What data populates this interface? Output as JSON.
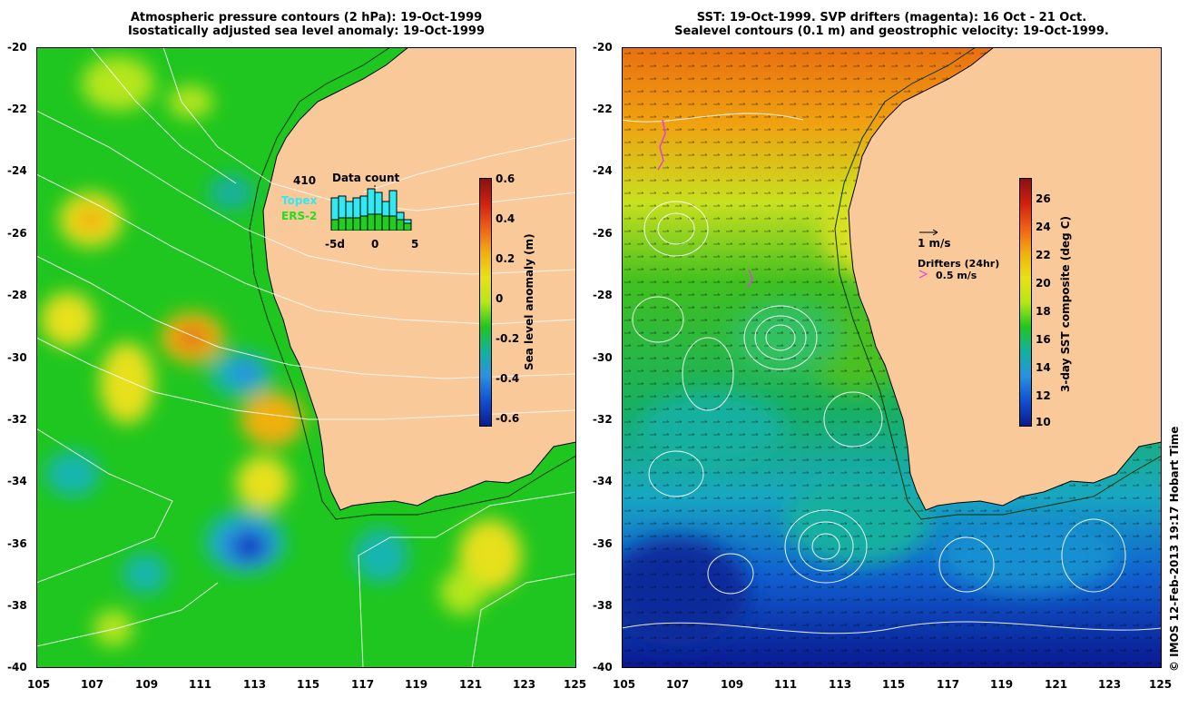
{
  "left_panel": {
    "title_line1": "Atmospheric pressure contours (2 hPa): 19-Oct-1999",
    "title_line2": "Isostatically adjusted sea level anomaly: 19-Oct-1999",
    "colorbar": {
      "label": "Sea level anomaly (m)",
      "ticks": [
        "0.6",
        "0.4",
        "0.2",
        "0",
        "-0.2",
        "-0.4",
        "-0.6"
      ],
      "min": -0.6,
      "max": 0.6
    },
    "data_count": {
      "total": "410",
      "title": "Data count",
      "legend_topex": "Topex",
      "legend_ers2": "ERS-2",
      "axis_labels": [
        "-5d",
        "0",
        "5"
      ],
      "topex_color": "#33e8f0",
      "ers2_color": "#22cc22"
    }
  },
  "right_panel": {
    "title_line1": "SST: 19-Oct-1999. SVP drifters (magenta): 16 Oct - 21 Oct.",
    "title_line2": "Sealevel contours (0.1 m) and geostrophic velocity: 19-Oct-1999.",
    "velocity_scale_label": "1 m/s",
    "drifters_label": "Drifters (24hr)",
    "drifter_speed_label": "0.5 m/s",
    "colorbar": {
      "label": "3-day SST composite (deg C)",
      "ticks": [
        "26",
        "24",
        "22",
        "20",
        "18",
        "16",
        "14",
        "12",
        "10"
      ],
      "min": 10,
      "max": 27.5
    }
  },
  "axes": {
    "lat_ticks": [
      "-20",
      "-22",
      "-24",
      "-26",
      "-28",
      "-30",
      "-32",
      "-34",
      "-36",
      "-38",
      "-40"
    ],
    "lon_ticks": [
      "105",
      "107",
      "109",
      "111",
      "113",
      "115",
      "117",
      "119",
      "121",
      "123",
      "125"
    ]
  },
  "credit": "© IMOS 12-Feb-2013 19:17 Hobart Time",
  "colors": {
    "land": "#f9c999",
    "ocean_green": "#22c122",
    "coast": "#000000",
    "contour": "#ffffff",
    "drifter": "#e040e0"
  }
}
